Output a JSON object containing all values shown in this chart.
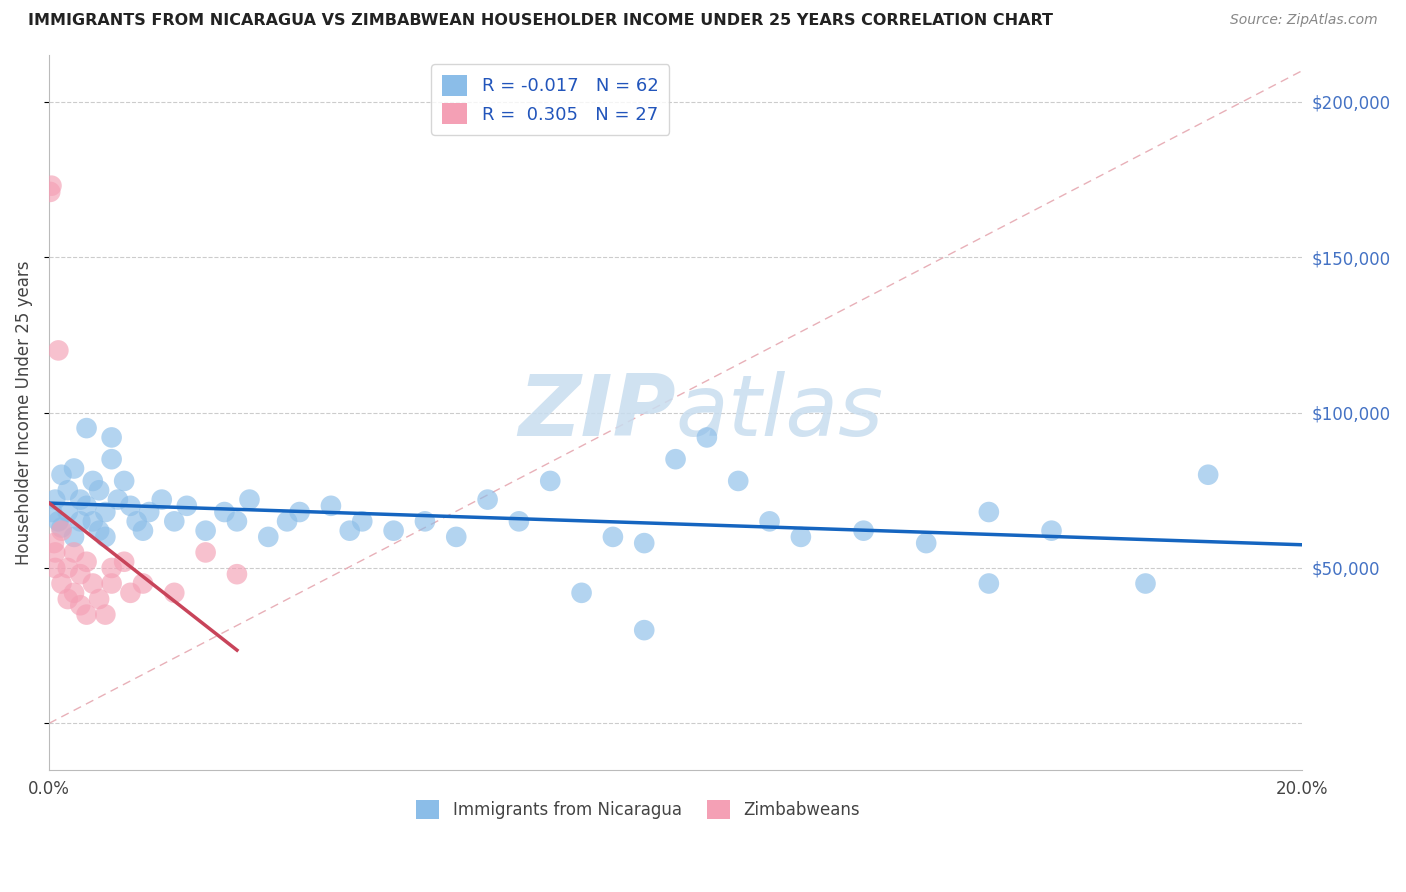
{
  "title": "IMMIGRANTS FROM NICARAGUA VS ZIMBABWEAN HOUSEHOLDER INCOME UNDER 25 YEARS CORRELATION CHART",
  "source": "Source: ZipAtlas.com",
  "ylabel": "Householder Income Under 25 years",
  "xlim": [
    0.0,
    0.2
  ],
  "ylim": [
    -15000,
    215000
  ],
  "yticks": [
    0,
    50000,
    100000,
    150000,
    200000
  ],
  "ytick_labels": [
    "",
    "$50,000",
    "$100,000",
    "$150,000",
    "$200,000"
  ],
  "xticks": [
    0.0,
    0.05,
    0.1,
    0.15,
    0.2
  ],
  "xtick_labels": [
    "0.0%",
    "",
    "",
    "",
    "20.0%"
  ],
  "blue_R": -0.017,
  "blue_N": 62,
  "pink_R": 0.305,
  "pink_N": 27,
  "blue_color": "#8BBDE8",
  "pink_color": "#F4A0B5",
  "blue_line_color": "#1565C0",
  "pink_line_color": "#C8445A",
  "diag_color": "#E8B0B8",
  "watermark_color": "#C8DDEF",
  "blue_scatter_x": [
    0.0005,
    0.001,
    0.0015,
    0.002,
    0.002,
    0.003,
    0.003,
    0.004,
    0.004,
    0.005,
    0.005,
    0.006,
    0.006,
    0.007,
    0.007,
    0.008,
    0.008,
    0.009,
    0.009,
    0.01,
    0.01,
    0.011,
    0.012,
    0.013,
    0.014,
    0.015,
    0.016,
    0.018,
    0.02,
    0.022,
    0.025,
    0.028,
    0.03,
    0.032,
    0.035,
    0.038,
    0.04,
    0.045,
    0.048,
    0.05,
    0.055,
    0.06,
    0.065,
    0.07,
    0.075,
    0.08,
    0.085,
    0.09,
    0.095,
    0.1,
    0.105,
    0.11,
    0.115,
    0.12,
    0.13,
    0.14,
    0.15,
    0.16,
    0.175,
    0.185,
    0.095,
    0.15
  ],
  "blue_scatter_y": [
    68000,
    72000,
    65000,
    80000,
    63000,
    75000,
    68000,
    82000,
    60000,
    72000,
    65000,
    95000,
    70000,
    65000,
    78000,
    62000,
    75000,
    68000,
    60000,
    92000,
    85000,
    72000,
    78000,
    70000,
    65000,
    62000,
    68000,
    72000,
    65000,
    70000,
    62000,
    68000,
    65000,
    72000,
    60000,
    65000,
    68000,
    70000,
    62000,
    65000,
    62000,
    65000,
    60000,
    72000,
    65000,
    78000,
    42000,
    60000,
    58000,
    85000,
    92000,
    78000,
    65000,
    60000,
    62000,
    58000,
    68000,
    62000,
    45000,
    80000,
    30000,
    45000
  ],
  "pink_scatter_x": [
    0.0002,
    0.0004,
    0.0008,
    0.001,
    0.001,
    0.0015,
    0.002,
    0.002,
    0.003,
    0.003,
    0.004,
    0.004,
    0.005,
    0.005,
    0.006,
    0.006,
    0.007,
    0.008,
    0.009,
    0.01,
    0.01,
    0.012,
    0.013,
    0.015,
    0.02,
    0.025,
    0.03
  ],
  "pink_scatter_y": [
    171000,
    173000,
    58000,
    55000,
    50000,
    120000,
    62000,
    45000,
    50000,
    40000,
    55000,
    42000,
    38000,
    48000,
    52000,
    35000,
    45000,
    40000,
    35000,
    50000,
    45000,
    52000,
    42000,
    45000,
    42000,
    55000,
    48000
  ]
}
